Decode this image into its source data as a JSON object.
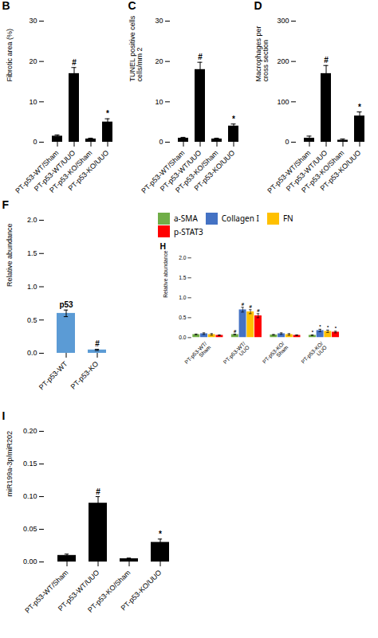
{
  "chart_data": [
    {
      "type": "bar",
      "title": "B",
      "categories": [
        "PT-p53-WT/Sham",
        "PT-p53-WT/UUO",
        "PT-p53-KO/Sham",
        "PT-p53-KO/UUO"
      ],
      "values": [
        1.5,
        17.0,
        0.8,
        5.0
      ],
      "errors": [
        0.3,
        1.5,
        0.2,
        0.8
      ],
      "color": "#000000",
      "ylabel": "Fibrotic area (%)",
      "ylim": [
        0,
        30
      ],
      "yticks": [
        0,
        10,
        20,
        30
      ],
      "annotations": [
        {
          "text": "#",
          "category": "PT-p53-WT/UUO"
        },
        {
          "text": "*",
          "category": "PT-p53-KO/UUO"
        }
      ]
    },
    {
      "type": "bar",
      "title": "C",
      "categories": [
        "PT-p53-WT/Sham",
        "PT-p53-WT/UUO",
        "PT-p53-KO/Sham",
        "PT-p53-KO/UUO"
      ],
      "values": [
        1.0,
        18.0,
        0.8,
        4.0
      ],
      "errors": [
        0.2,
        1.8,
        0.2,
        0.5
      ],
      "color": "#000000",
      "ylabel": "TUNEL positive cells\ncells/mm 2",
      "ylim": [
        0,
        30
      ],
      "yticks": [
        0,
        10,
        20,
        30
      ],
      "annotations": [
        {
          "text": "#",
          "category": "PT-p53-WT/UUO"
        },
        {
          "text": "*",
          "category": "PT-p53-KO/UUO"
        }
      ]
    },
    {
      "type": "bar",
      "title": "D",
      "categories": [
        "PT-p53-WT/Sham",
        "PT-p53-WT/UUO",
        "PT-p53-KO/Sham",
        "PT-p53-KO/UUO"
      ],
      "values": [
        10,
        170,
        5,
        65
      ],
      "errors": [
        5,
        20,
        3,
        10
      ],
      "color": "#000000",
      "ylabel": "Macrophages per\ncross section",
      "ylim": [
        0,
        300
      ],
      "yticks": [
        0,
        100,
        200,
        300
      ],
      "annotations": [
        {
          "text": "#",
          "category": "PT-p53-WT/UUO"
        },
        {
          "text": "*",
          "category": "PT-p53-KO/UUO"
        }
      ]
    },
    {
      "type": "bar",
      "title": "F",
      "categories": [
        "PT-p53-WT",
        "PT-p53-KO"
      ],
      "values": [
        0.6,
        0.05
      ],
      "errors": [
        0.05,
        0.01
      ],
      "color": "#5b9bd5",
      "ylabel": "Relative abundance",
      "ylim": [
        0,
        2.0
      ],
      "yticks": [
        {
          "value": 0,
          "label": "0.0"
        },
        0.5,
        {
          "value": 1.0,
          "label": "1.0"
        },
        1.5,
        {
          "value": 2.0,
          "label": "2.0"
        }
      ],
      "annotations": [
        {
          "text": "p53",
          "category": "PT-p53-WT"
        },
        {
          "text": "#",
          "category": "PT-p53-KO"
        }
      ]
    },
    {
      "type": "bar",
      "title": "H",
      "categories": [
        "PT-p53-WT/\nSham",
        "PT-p53-WT/\nUUO",
        "PT-p53-KO/\nSham",
        "PT-p53-KO/\nUUO"
      ],
      "series": [
        {
          "name": "a-SMA",
          "color": "#70ad47",
          "values": [
            0.08,
            0.08,
            0.07,
            0.06
          ],
          "errors": [
            0.01,
            0.01,
            0.01,
            0.01
          ]
        },
        {
          "name": "Collagen I",
          "color": "#4472c4",
          "values": [
            0.1,
            0.7,
            0.1,
            0.18
          ],
          "errors": [
            0.02,
            0.06,
            0.02,
            0.03
          ]
        },
        {
          "name": "FN",
          "color": "#ffc000",
          "values": [
            0.08,
            0.65,
            0.08,
            0.16
          ],
          "errors": [
            0.02,
            0.05,
            0.02,
            0.03
          ]
        },
        {
          "name": "p-STAT3",
          "color": "#ff0000",
          "values": [
            0.06,
            0.55,
            0.06,
            0.14
          ],
          "errors": [
            0.01,
            0.05,
            0.01,
            0.02
          ]
        }
      ],
      "ylabel": "Relative abundance",
      "ylim": [
        0,
        2
      ],
      "yticks": [
        {
          "value": 0,
          "label": "0.0"
        },
        0.5,
        {
          "value": 1.0,
          "label": "1.0"
        },
        1.5,
        {
          "value": 2.0,
          "label": "2.0"
        }
      ],
      "legend": "top",
      "annotations": [
        {
          "text": "#",
          "category": "PT-p53-WT/\nUUO",
          "series": "a-SMA"
        },
        {
          "text": "#",
          "category": "PT-p53-WT/\nUUO",
          "series": "Collagen I"
        },
        {
          "text": "#",
          "category": "PT-p53-WT/\nUUO",
          "series": "FN"
        },
        {
          "text": "#",
          "category": "PT-p53-WT/\nUUO",
          "series": "p-STAT3"
        },
        {
          "text": "*",
          "category": "PT-p53-KO/\nUUO",
          "series": "a-SMA"
        },
        {
          "text": "*",
          "category": "PT-p53-KO/\nUUO",
          "series": "Collagen I"
        },
        {
          "text": "*",
          "category": "PT-p53-KO/\nUUO",
          "series": "FN"
        },
        {
          "text": "*",
          "category": "PT-p53-KO/\nUUO",
          "series": "p-STAT3"
        }
      ]
    },
    {
      "type": "bar",
      "title": "I",
      "categories": [
        "PT-p53-WT/Sham",
        "PT-p53-WT/UUO",
        "PT-p53-KO/Sham",
        "PT-p53-KO/UUO"
      ],
      "values": [
        0.01,
        0.09,
        0.005,
        0.03
      ],
      "errors": [
        0.002,
        0.01,
        0.001,
        0.005
      ],
      "color": "#000000",
      "ylabel": "miR199a-3p/miR202",
      "ylim": [
        0,
        0.2
      ],
      "yticks": [
        {
          "value": 0,
          "label": "0.00"
        },
        0.05,
        {
          "value": 0.1,
          "label": "0.10"
        },
        0.15,
        {
          "value": 0.2,
          "label": "0.20"
        }
      ],
      "annotations": [
        {
          "text": "#",
          "category": "PT-p53-WT/UUO"
        },
        {
          "text": "*",
          "category": "PT-p53-KO/UUO"
        }
      ]
    }
  ]
}
